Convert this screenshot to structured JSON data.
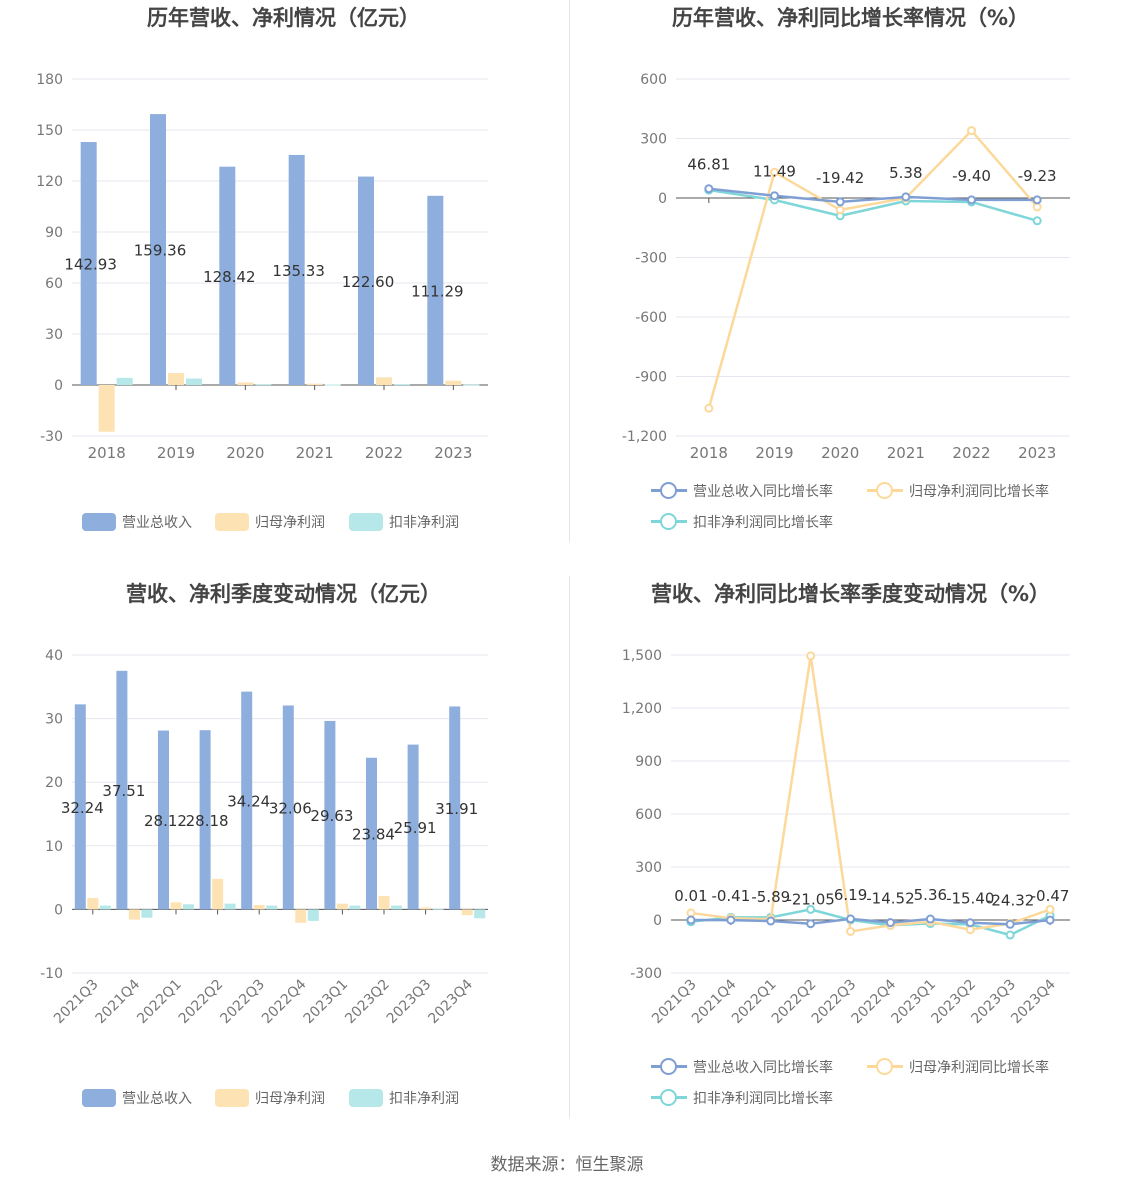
{
  "footer": "数据来源：恒生聚源",
  "chart_data": [
    {
      "type": "bar",
      "title": "历年营收、净利情况（亿元）",
      "categories": [
        "2018",
        "2019",
        "2020",
        "2021",
        "2022",
        "2023"
      ],
      "ylim": [
        -30,
        180
      ],
      "yticks": [
        -30,
        0,
        30,
        60,
        90,
        120,
        150,
        180
      ],
      "label_series": 0,
      "series": [
        {
          "name": "营业总收入",
          "color": "#8eaedd",
          "values": [
            142.93,
            159.36,
            128.42,
            135.33,
            122.6,
            111.29
          ],
          "labels": [
            "142.93",
            "159.36",
            "128.42",
            "135.33",
            "122.60",
            "111.29"
          ]
        },
        {
          "name": "归母净利润",
          "color": "#fde2b4",
          "values": [
            -27.5,
            7.0,
            1.5,
            0.8,
            4.5,
            2.5
          ]
        },
        {
          "name": "扣非净利润",
          "color": "#b6e7e9",
          "values": [
            4.2,
            3.8,
            0.5,
            0.3,
            0.5,
            0.2
          ]
        }
      ],
      "legend": "bottom",
      "grid": true
    },
    {
      "type": "line",
      "title": "历年营收、净利同比增长率情况（%）",
      "categories": [
        "2018",
        "2019",
        "2020",
        "2021",
        "2022",
        "2023"
      ],
      "ylim": [
        -1200,
        600
      ],
      "yticks": [
        -1200,
        -900,
        -600,
        -300,
        0,
        300,
        600
      ],
      "label_series": 0,
      "series": [
        {
          "name": "营业总收入同比增长率",
          "color": "#7f9fd4",
          "values": [
            46.81,
            11.49,
            -19.42,
            5.38,
            -9.4,
            -9.23
          ],
          "labels": [
            "46.81",
            "11.49",
            "-19.42",
            "5.38",
            "-9.40",
            "-9.23"
          ]
        },
        {
          "name": "归母净利润同比增长率",
          "color": "#fcd99b",
          "values": [
            -1060,
            130,
            -60,
            0,
            340,
            -45
          ]
        },
        {
          "name": "扣非净利润同比增长率",
          "color": "#7fd6d8",
          "values": [
            40,
            -10,
            -90,
            -15,
            -20,
            -115
          ]
        }
      ],
      "legend": "bottom",
      "grid": true
    },
    {
      "type": "bar",
      "title": "营收、净利季度变动情况（亿元）",
      "categories": [
        "2021Q3",
        "2021Q4",
        "2022Q1",
        "2022Q2",
        "2022Q3",
        "2022Q4",
        "2023Q1",
        "2023Q2",
        "2023Q3",
        "2023Q4"
      ],
      "ylim": [
        -10,
        40
      ],
      "yticks": [
        -10,
        0,
        10,
        20,
        30,
        40
      ],
      "label_series": 0,
      "series": [
        {
          "name": "营业总收入",
          "color": "#8eaedd",
          "values": [
            32.24,
            37.51,
            28.12,
            28.18,
            34.24,
            32.06,
            29.63,
            23.84,
            25.91,
            31.91
          ],
          "labels": [
            "32.24",
            "37.51",
            "28.12",
            "28.18",
            "34.24",
            "32.06",
            "29.63",
            "23.84",
            "25.91",
            "31.91"
          ]
        },
        {
          "name": "归母净利润",
          "color": "#fde2b4",
          "values": [
            1.8,
            -1.6,
            1.1,
            4.8,
            0.7,
            -2.1,
            0.9,
            2.1,
            0.3,
            -0.9
          ]
        },
        {
          "name": "扣非净利润",
          "color": "#b6e7e9",
          "values": [
            0.6,
            -1.3,
            0.8,
            0.9,
            0.6,
            -1.8,
            0.6,
            0.6,
            0.1,
            -1.4
          ]
        }
      ],
      "legend": "bottom",
      "grid": true
    },
    {
      "type": "line",
      "title": "营收、净利同比增长率季度变动情况（%）",
      "categories": [
        "2021Q3",
        "2021Q4",
        "2022Q1",
        "2022Q2",
        "2022Q3",
        "2022Q4",
        "2023Q1",
        "2023Q2",
        "2023Q3",
        "2023Q4"
      ],
      "ylim": [
        -300,
        1500
      ],
      "yticks": [
        -300,
        0,
        300,
        600,
        900,
        1200,
        1500
      ],
      "label_series": 0,
      "series": [
        {
          "name": "营业总收入同比增长率",
          "color": "#7f9fd4",
          "values": [
            0.01,
            -0.41,
            -5.89,
            -21.05,
            6.19,
            -14.52,
            5.36,
            -15.4,
            -24.32,
            -0.47
          ],
          "labels": [
            "0.01",
            "-0.41",
            "-5.89",
            "-21.05",
            "6.19",
            "-14.52",
            "5.36",
            "-15.40",
            "-24.32",
            "-0.47"
          ]
        },
        {
          "name": "归母净利润同比增长率",
          "color": "#fcd99b",
          "values": [
            40,
            10,
            5,
            1495,
            -65,
            -30,
            -10,
            -55,
            -20,
            60
          ]
        },
        {
          "name": "扣非净利润同比增长率",
          "color": "#7fd6d8",
          "values": [
            -10,
            15,
            15,
            60,
            0,
            -30,
            -20,
            -25,
            -85,
            25
          ]
        }
      ],
      "legend": "bottom",
      "grid": true
    }
  ]
}
